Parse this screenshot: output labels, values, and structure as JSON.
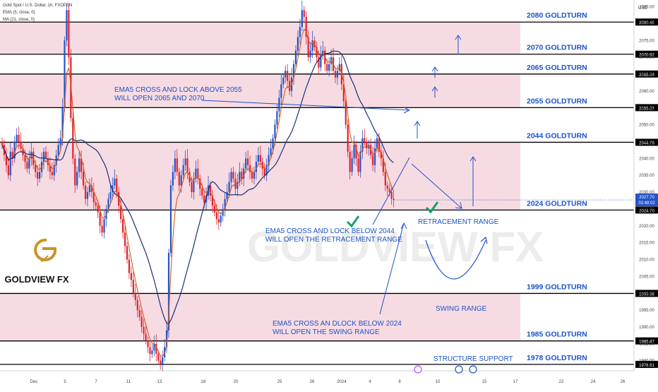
{
  "header": {
    "symbol_line": "Gold Spot / U.S. Dollar, 1h, FXOPEN",
    "ema_line": "EMA (5, close, 0)",
    "ma_line": "MA (21, close, 0)",
    "currency": "USD"
  },
  "logo": {
    "brand": "GOLDVIEW FX",
    "watermark": "GOLDVIEW FX"
  },
  "colors": {
    "zone_fill": "#f7dbe3",
    "level_line": "#000000",
    "text_blue": "#1e53c8",
    "ema": "#f4a640",
    "ema_dark": "#d65a1c",
    "ma": "#1a2f7a",
    "candle_up": "#2454c6",
    "candle_down": "#e2222d",
    "check": "#16a06a",
    "price_tag": "#2454c6",
    "logo_gold": "#c99526"
  },
  "chart_data": {
    "type": "candlestick",
    "instrument": "Gold Spot / U.S. Dollar",
    "timeframe": "1h",
    "ylim": [
      1977,
      2087
    ],
    "y_ticks": [
      2085,
      2080,
      2075,
      2070,
      2065,
      2060,
      2055,
      2050,
      2045,
      2040,
      2035,
      2030,
      2025,
      2020,
      2015,
      2010,
      2005,
      2000,
      1995,
      1990,
      1985,
      1980
    ],
    "x_ticks": [
      "Dec",
      "5",
      "7",
      "11",
      "13",
      "18",
      "20",
      "25",
      "28",
      "2024",
      "4",
      "8",
      "10",
      "15",
      "17",
      "22",
      "24",
      "26"
    ],
    "zones": [
      {
        "from": 2070.92,
        "to": 2080.46
      },
      {
        "from": 2055.07,
        "to": 2065.04
      },
      {
        "from": 2024.7,
        "to": 2044.79
      },
      {
        "from": 1985.87,
        "to": 1999.96
      }
    ],
    "levels": [
      {
        "label": "2080 GOLDTURN",
        "value": 2080.46,
        "tag": "2080.46"
      },
      {
        "label": "2070 GOLDTURN",
        "value": 2070.92,
        "tag": "2070.92"
      },
      {
        "label": "2065 GOLDTURN",
        "value": 2065.04,
        "tag": "2065.04"
      },
      {
        "label": "2055 GOLDTURN",
        "value": 2055.07,
        "tag": "2055.07"
      },
      {
        "label": "2044 GOLDTURN",
        "value": 2044.79,
        "tag": "2044.79"
      },
      {
        "label": "2024 GOLDTURN",
        "value": 2024.7,
        "tag": "2024.70"
      },
      {
        "label": "1999 GOLDTURN",
        "value": 1999.96,
        "tag": "1999.96"
      },
      {
        "label": "1985 GOLDTURN",
        "value": 1985.87,
        "tag": "1985.87"
      },
      {
        "label": "1978 GOLDTURN",
        "value": 1978.91,
        "tag": "1978.91"
      }
    ],
    "range_labels": [
      "RETRACEMENT RANGE",
      "SWING RANGE",
      "STRUCTURE SUPPORT"
    ],
    "annotations": [
      {
        "line1": "EMA5 CROSS AND LOCK ABOVE 2055",
        "line2": "WILL OPEN 2065 AND 2070"
      },
      {
        "line1": "EMA5 CROSS AND LOCK BELOW 2044",
        "line2": "WILL OPEN THE RETRACEMENT RANGE"
      },
      {
        "line1": "EMA5 CROSS AN DLOCK BELOW 2024",
        "line2": "WILL OPEN THE SWING RANGE"
      }
    ],
    "current_price": {
      "value": 2027.7,
      "price": "2027.70",
      "countdown": "02:48:02"
    },
    "series_close": [
      2044,
      2041,
      2038,
      2035,
      2042,
      2040,
      2045,
      2047,
      2045,
      2043,
      2041,
      2039,
      2037,
      2040,
      2042,
      2038,
      2036,
      2034,
      2036,
      2039,
      2042,
      2040,
      2038,
      2036,
      2035,
      2038,
      2041,
      2044,
      2046,
      2055,
      2075,
      2084,
      2070,
      2052,
      2040,
      2032,
      2036,
      2040,
      2036,
      2032,
      2028,
      2030,
      2032,
      2030,
      2027,
      2026,
      2024,
      2020,
      2018,
      2022,
      2025,
      2028,
      2030,
      2032,
      2034,
      2030,
      2026,
      2022,
      2018,
      2014,
      2010,
      2006,
      2004,
      2000,
      1998,
      1995,
      1993,
      1990,
      1988,
      1986,
      1984,
      1982,
      1983,
      1985,
      1982,
      1980,
      1979,
      1981,
      1984,
      1989,
      2012,
      2032,
      2036,
      2040,
      2036,
      2032,
      2035,
      2038,
      2040,
      2036,
      2033,
      2030,
      2034,
      2037,
      2034,
      2031,
      2029,
      2027,
      2029,
      2032,
      2029,
      2026,
      2024,
      2022,
      2021,
      2023,
      2025,
      2028,
      2030,
      2033,
      2036,
      2034,
      2031,
      2033,
      2036,
      2034,
      2037,
      2040,
      2038,
      2036,
      2034,
      2036,
      2039,
      2041,
      2039,
      2037,
      2035,
      2038,
      2041,
      2043,
      2046,
      2050,
      2054,
      2058,
      2062,
      2064,
      2066,
      2063,
      2060,
      2064,
      2068,
      2072,
      2076,
      2079,
      2084,
      2082,
      2076,
      2070,
      2072,
      2075,
      2073,
      2070,
      2067,
      2071,
      2072,
      2068,
      2066,
      2068,
      2070,
      2066,
      2064,
      2066,
      2068,
      2062,
      2057,
      2050,
      2042,
      2036,
      2040,
      2044,
      2040,
      2036,
      2042,
      2046,
      2045,
      2043,
      2044,
      2041,
      2038,
      2043,
      2046,
      2042,
      2040,
      2036,
      2032,
      2031,
      2030,
      2028,
      2027.7
    ]
  }
}
